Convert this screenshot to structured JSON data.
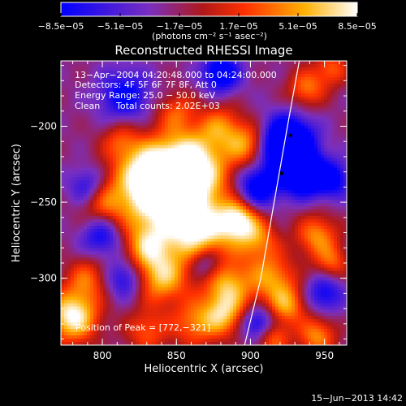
{
  "chart_data": {
    "type": "heatmap",
    "title": "Reconstructed RHESSI Image",
    "xlabel": "Heliocentric X (arcsec)",
    "ylabel": "Heliocentric Y (arcsec)",
    "xlim": [
      772,
      965
    ],
    "ylim": [
      -344,
      -157
    ],
    "x_ticks": [
      {
        "value": 800,
        "label": "800"
      },
      {
        "value": 850,
        "label": "850"
      },
      {
        "value": 900,
        "label": "900"
      },
      {
        "value": 950,
        "label": "950"
      }
    ],
    "y_ticks": [
      {
        "value": -200,
        "label": "−200"
      },
      {
        "value": -250,
        "label": "−250"
      },
      {
        "value": -300,
        "label": "−300"
      }
    ],
    "colorbar": {
      "range": [
        -8.5e-05,
        8.5e-05
      ],
      "ticks": [
        {
          "value": -8.5e-05,
          "label": "−8.5e−05"
        },
        {
          "value": -5.1e-05,
          "label": "−5.1e−05"
        },
        {
          "value": -1.7e-05,
          "label": "−1.7e−05"
        },
        {
          "value": 1.7e-05,
          "label": "1.7e−05"
        },
        {
          "value": 5.1e-05,
          "label": "5.1e−05"
        },
        {
          "value": 8.5e-05,
          "label": "8.5e−05"
        }
      ],
      "unit_label": "(photons cm⁻² s⁻¹ asec⁻²)",
      "colors": [
        "#0000ff",
        "#7a2fbf",
        "#b01818",
        "#ff3000",
        "#ffb000",
        "#ffffff"
      ]
    },
    "annotations": {
      "time_range": "13−Apr−2004 04:20:48.000 to 04:24:00.000",
      "detectors": "Detectors: 4F 5F 6F 7F 8F, Att 0",
      "energy_range": "Energy Range: 25.0 − 50.0 keV",
      "clean": "Clean",
      "total_counts": "Total counts: 2.02E+03",
      "peak_position": "Position of Peak = [772,−321]"
    },
    "limb_curve": [
      {
        "x": 933,
        "y": -157
      },
      {
        "x": 925,
        "y": -200
      },
      {
        "x": 916,
        "y": -250
      },
      {
        "x": 907,
        "y": -300
      },
      {
        "x": 896,
        "y": -344
      }
    ],
    "markers": [
      {
        "x": 927,
        "y": -206
      },
      {
        "x": 921,
        "y": -231
      }
    ],
    "blobs": [
      {
        "x": 845,
        "y": -248,
        "amp": 0.7,
        "s": 24
      },
      {
        "x": 860,
        "y": -225,
        "amp": 0.5,
        "s": 16
      },
      {
        "x": 832,
        "y": -232,
        "amp": 0.45,
        "s": 13
      },
      {
        "x": 868,
        "y": -272,
        "amp": 0.4,
        "s": 14
      },
      {
        "x": 780,
        "y": -325,
        "amp": 0.65,
        "s": 12
      },
      {
        "x": 790,
        "y": -300,
        "amp": 0.3,
        "s": 10
      },
      {
        "x": 840,
        "y": -300,
        "amp": 0.45,
        "s": 12
      },
      {
        "x": 830,
        "y": -280,
        "amp": 0.3,
        "s": 10
      },
      {
        "x": 885,
        "y": -305,
        "amp": 0.45,
        "s": 12
      },
      {
        "x": 882,
        "y": -325,
        "amp": 0.4,
        "s": 10
      },
      {
        "x": 892,
        "y": -262,
        "amp": 0.55,
        "s": 9
      },
      {
        "x": 905,
        "y": -275,
        "amp": 0.35,
        "s": 10
      },
      {
        "x": 898,
        "y": -212,
        "amp": 0.4,
        "s": 10
      },
      {
        "x": 880,
        "y": -200,
        "amp": 0.3,
        "s": 10
      },
      {
        "x": 915,
        "y": -300,
        "amp": 0.4,
        "s": 11
      },
      {
        "x": 925,
        "y": -318,
        "amp": 0.4,
        "s": 9
      },
      {
        "x": 945,
        "y": -272,
        "amp": 0.4,
        "s": 10
      },
      {
        "x": 955,
        "y": -290,
        "amp": 0.3,
        "s": 8
      },
      {
        "x": 945,
        "y": -338,
        "amp": 0.4,
        "s": 9
      },
      {
        "x": 915,
        "y": -340,
        "amp": 0.35,
        "s": 8
      },
      {
        "x": 938,
        "y": -175,
        "amp": 0.35,
        "s": 9
      },
      {
        "x": 955,
        "y": -162,
        "amp": 0.3,
        "s": 8
      },
      {
        "x": 800,
        "y": -250,
        "amp": 0.3,
        "s": 11
      },
      {
        "x": 862,
        "y": -330,
        "amp": 0.35,
        "s": 11
      },
      {
        "x": 830,
        "y": -335,
        "amp": 0.3,
        "s": 10
      },
      {
        "x": 812,
        "y": -210,
        "amp": 0.25,
        "s": 9
      },
      {
        "x": 850,
        "y": -190,
        "amp": 0.25,
        "s": 9
      },
      {
        "x": 925,
        "y": -212,
        "amp": -0.9,
        "s": 12
      },
      {
        "x": 935,
        "y": -232,
        "amp": -0.6,
        "s": 10
      },
      {
        "x": 880,
        "y": -165,
        "amp": -0.5,
        "s": 9
      },
      {
        "x": 905,
        "y": -240,
        "amp": -0.5,
        "s": 10
      },
      {
        "x": 815,
        "y": -180,
        "amp": -0.4,
        "s": 12
      },
      {
        "x": 800,
        "y": -272,
        "amp": -0.4,
        "s": 10
      },
      {
        "x": 790,
        "y": -240,
        "amp": -0.35,
        "s": 9
      },
      {
        "x": 870,
        "y": -290,
        "amp": -0.35,
        "s": 8
      },
      {
        "x": 955,
        "y": -235,
        "amp": -0.4,
        "s": 9
      },
      {
        "x": 950,
        "y": -310,
        "amp": -0.35,
        "s": 9
      },
      {
        "x": 905,
        "y": -330,
        "amp": -0.4,
        "s": 8
      },
      {
        "x": 815,
        "y": -300,
        "amp": -0.35,
        "s": 9
      }
    ]
  },
  "footer": {
    "timestamp": "15−Jun−2013 14:42"
  }
}
